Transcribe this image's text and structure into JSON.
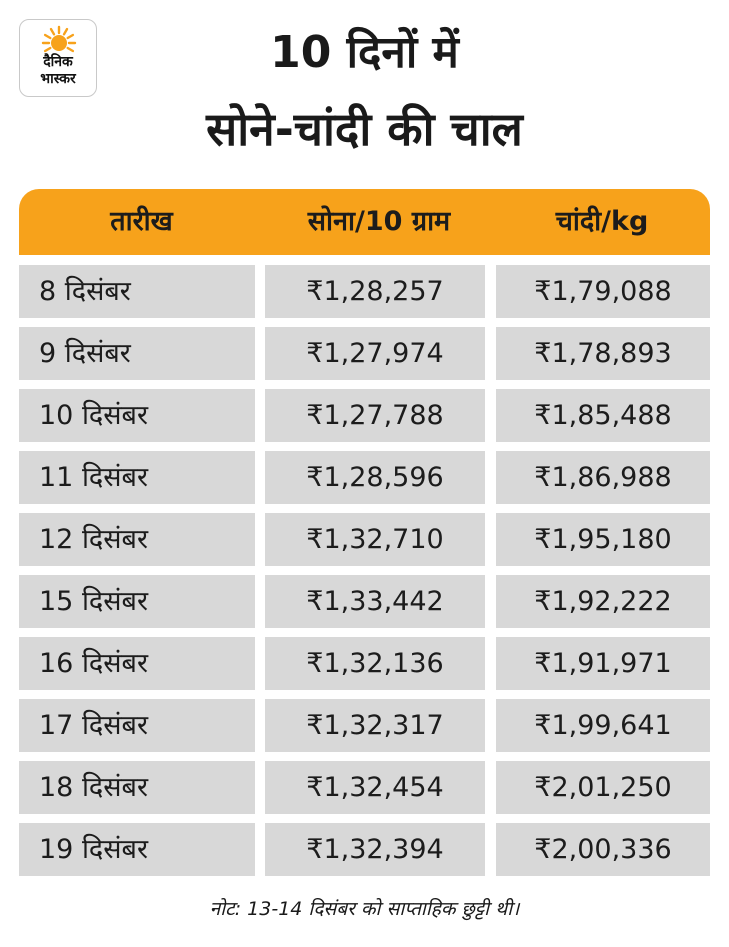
{
  "logo": {
    "line1": "दैनिक",
    "line2": "भास्कर",
    "accent": "#f7a21b"
  },
  "title": {
    "line1": "10 दिनों में",
    "line2": "सोने-चांदी की चाल"
  },
  "table": {
    "header": {
      "date": "तारीख",
      "gold": "सोना/10 ग्राम",
      "silver": "चांदी/kg"
    },
    "rows": [
      {
        "date": "8 दिसंबर",
        "gold": "₹1,28,257",
        "silver": "₹1,79,088"
      },
      {
        "date": "9 दिसंबर",
        "gold": "₹1,27,974",
        "silver": "₹1,78,893"
      },
      {
        "date": "10 दिसंबर",
        "gold": "₹1,27,788",
        "silver": "₹1,85,488"
      },
      {
        "date": "11 दिसंबर",
        "gold": "₹1,28,596",
        "silver": "₹1,86,988"
      },
      {
        "date": "12 दिसंबर",
        "gold": "₹1,32,710",
        "silver": "₹1,95,180"
      },
      {
        "date": "15 दिसंबर",
        "gold": "₹1,33,442",
        "silver": "₹1,92,222"
      },
      {
        "date": "16 दिसंबर",
        "gold": "₹1,32,136",
        "silver": "₹1,91,971"
      },
      {
        "date": "17 दिसंबर",
        "gold": "₹1,32,317",
        "silver": "₹1,99,641"
      },
      {
        "date": "18 दिसंबर",
        "gold": "₹1,32,454",
        "silver": "₹2,01,250"
      },
      {
        "date": "19 दिसंबर",
        "gold": "₹1,32,394",
        "silver": "₹2,00,336"
      }
    ]
  },
  "note": "नोट: 13-14 दिसंबर को साप्ताहिक छुट्टी थी।"
}
